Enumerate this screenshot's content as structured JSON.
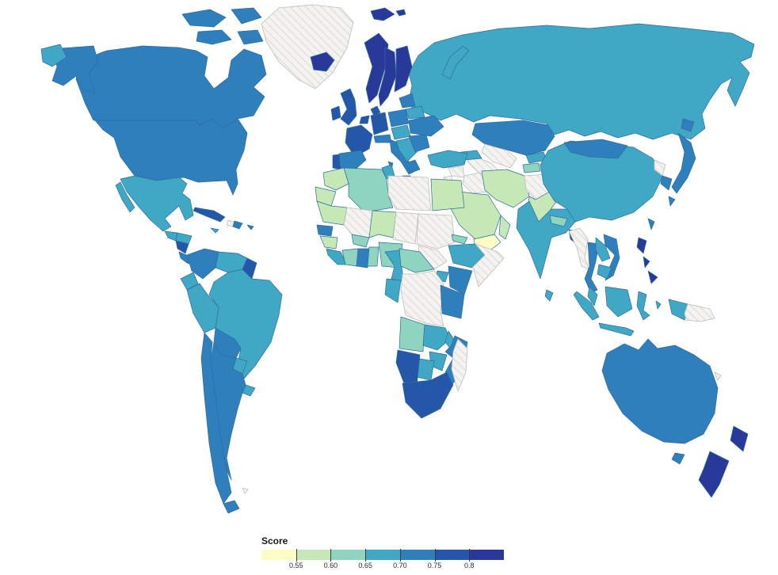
{
  "figure": {
    "kind": "choropleth-world-map",
    "background": "#ffffff",
    "no_data_style": "light gray diagonal hatching"
  },
  "legend": {
    "title": "Score",
    "ticks": [
      "0.55",
      "0.60",
      "0.65",
      "0.70",
      "0.75",
      "0.8"
    ],
    "segment_bands": [
      "b0",
      "b1",
      "b2",
      "b3",
      "b4",
      "b5",
      "b6"
    ]
  },
  "map": {
    "palette": {
      "b0": "#fcfdc4",
      "b1": "#c6e8b6",
      "b2": "#8ed4be",
      "b3": "#40a8c5",
      "b4": "#2e7fbb",
      "b5": "#2457a8",
      "b6": "#29399a",
      "no_data_bg": "#f4f3f0",
      "no_data_stripe": "#dedddb",
      "border": "#2e6da0"
    },
    "bands": [
      {
        "key": "b0",
        "range": "< 0.55"
      },
      {
        "key": "b1",
        "range": "0.55 - 0.60"
      },
      {
        "key": "b2",
        "range": "0.60 - 0.65"
      },
      {
        "key": "b3",
        "range": "0.65 - 0.70"
      },
      {
        "key": "b4",
        "range": "0.70 - 0.75"
      },
      {
        "key": "b5",
        "range": "0.75 - 0.80"
      },
      {
        "key": "b6",
        "range": "> 0.80"
      },
      {
        "key": "nodata",
        "range": "no data (hatched)"
      }
    ],
    "regions": [
      {
        "id": "greenland",
        "name": "Greenland",
        "band": "nodata"
      },
      {
        "id": "canada",
        "name": "Canada",
        "band": "b4"
      },
      {
        "id": "united-states",
        "name": "United States",
        "band": "b4"
      },
      {
        "id": "mexico",
        "name": "Mexico",
        "band": "b3"
      },
      {
        "id": "guatemala",
        "name": "Guatemala",
        "band": "b3"
      },
      {
        "id": "honduras",
        "name": "Honduras",
        "band": "b3"
      },
      {
        "id": "nicaragua",
        "name": "Nicaragua",
        "band": "b5"
      },
      {
        "id": "costa-rica",
        "name": "Costa Rica",
        "band": "b4"
      },
      {
        "id": "panama",
        "name": "Panama",
        "band": "b4"
      },
      {
        "id": "cuba",
        "name": "Cuba",
        "band": "b5"
      },
      {
        "id": "haiti",
        "name": "Haiti",
        "band": "nodata"
      },
      {
        "id": "dominican-republic",
        "name": "Dominican Republic",
        "band": "b4"
      },
      {
        "id": "jamaica",
        "name": "Jamaica",
        "band": "b3"
      },
      {
        "id": "puerto-rico",
        "name": "Puerto Rico",
        "band": "b4"
      },
      {
        "id": "colombia",
        "name": "Colombia",
        "band": "b4"
      },
      {
        "id": "venezuela",
        "name": "Venezuela",
        "band": "b3"
      },
      {
        "id": "guyana-suriname",
        "name": "Guyana / Suriname",
        "band": "b5"
      },
      {
        "id": "ecuador",
        "name": "Ecuador",
        "band": "b3"
      },
      {
        "id": "peru",
        "name": "Peru",
        "band": "b3"
      },
      {
        "id": "brazil",
        "name": "Brazil",
        "band": "b3"
      },
      {
        "id": "bolivia",
        "name": "Bolivia",
        "band": "b4"
      },
      {
        "id": "paraguay",
        "name": "Paraguay",
        "band": "b3"
      },
      {
        "id": "uruguay",
        "name": "Uruguay",
        "band": "b3"
      },
      {
        "id": "chile",
        "name": "Chile",
        "band": "b4"
      },
      {
        "id": "argentina",
        "name": "Argentina",
        "band": "b4"
      },
      {
        "id": "falkland-islands",
        "name": "Falkland Islands",
        "band": "nodata"
      },
      {
        "id": "russia",
        "name": "Russia",
        "band": "b3"
      },
      {
        "id": "iceland",
        "name": "Iceland",
        "band": "b6"
      },
      {
        "id": "svalbard",
        "name": "Svalbard",
        "band": "b6"
      },
      {
        "id": "norway",
        "name": "Norway",
        "band": "b6"
      },
      {
        "id": "sweden",
        "name": "Sweden",
        "band": "b6"
      },
      {
        "id": "finland",
        "name": "Finland",
        "band": "b6"
      },
      {
        "id": "denmark",
        "name": "Denmark",
        "band": "b5"
      },
      {
        "id": "united-kingdom",
        "name": "United Kingdom",
        "band": "b5"
      },
      {
        "id": "ireland",
        "name": "Ireland",
        "band": "b5"
      },
      {
        "id": "benelux",
        "name": "Belgium / Netherlands",
        "band": "b5"
      },
      {
        "id": "germany",
        "name": "Germany",
        "band": "b5"
      },
      {
        "id": "france",
        "name": "France",
        "band": "b5"
      },
      {
        "id": "spain",
        "name": "Spain",
        "band": "b4"
      },
      {
        "id": "portugal",
        "name": "Portugal",
        "band": "b5"
      },
      {
        "id": "italy",
        "name": "Italy",
        "band": "b4"
      },
      {
        "id": "switzerland-austria",
        "name": "Switzerland / Austria",
        "band": "b4"
      },
      {
        "id": "poland",
        "name": "Poland",
        "band": "b4"
      },
      {
        "id": "czech-slovakia-hungary",
        "name": "Czechia / Slovakia / Hungary",
        "band": "b3"
      },
      {
        "id": "balkans",
        "name": "Western Balkans",
        "band": "b3"
      },
      {
        "id": "greece",
        "name": "Greece",
        "band": "b4"
      },
      {
        "id": "romania-bulgaria",
        "name": "Romania / Bulgaria",
        "band": "b4"
      },
      {
        "id": "ukraine",
        "name": "Ukraine",
        "band": "b4"
      },
      {
        "id": "belarus",
        "name": "Belarus",
        "band": "b3"
      },
      {
        "id": "baltic-states",
        "name": "Baltic States",
        "band": "b4"
      },
      {
        "id": "kazakhstan",
        "name": "Kazakhstan",
        "band": "b4"
      },
      {
        "id": "uzbekistan",
        "name": "Uzbekistan",
        "band": "nodata"
      },
      {
        "id": "turkmenistan",
        "name": "Turkmenistan",
        "band": "nodata"
      },
      {
        "id": "kyrgyzstan",
        "name": "Kyrgyzstan",
        "band": "b3"
      },
      {
        "id": "tajikistan",
        "name": "Tajikistan",
        "band": "b2"
      },
      {
        "id": "caucasus",
        "name": "Georgia / Azerbaijan",
        "band": "b3"
      },
      {
        "id": "turkey",
        "name": "Turkey",
        "band": "b3"
      },
      {
        "id": "syria",
        "name": "Syria",
        "band": "nodata"
      },
      {
        "id": "iraq",
        "name": "Iraq",
        "band": "nodata"
      },
      {
        "id": "jordan",
        "name": "Jordan",
        "band": "nodata"
      },
      {
        "id": "iran",
        "name": "Iran",
        "band": "b1"
      },
      {
        "id": "afghanistan",
        "name": "Afghanistan",
        "band": "nodata"
      },
      {
        "id": "pakistan",
        "name": "Pakistan",
        "band": "b1"
      },
      {
        "id": "saudi-arabia",
        "name": "Saudi Arabia",
        "band": "b1"
      },
      {
        "id": "yemen",
        "name": "Yemen",
        "band": "b0"
      },
      {
        "id": "oman",
        "name": "Oman",
        "band": "b1"
      },
      {
        "id": "morocco",
        "name": "Morocco",
        "band": "b1"
      },
      {
        "id": "western-sahara",
        "name": "Western Sahara",
        "band": "b1"
      },
      {
        "id": "mauritania",
        "name": "Mauritania",
        "band": "b1"
      },
      {
        "id": "senegal",
        "name": "Senegal",
        "band": "b4"
      },
      {
        "id": "guinea",
        "name": "Guinea",
        "band": "b1"
      },
      {
        "id": "sierra-leone-liberia",
        "name": "Sierra Leone / Liberia",
        "band": "b3"
      },
      {
        "id": "mali",
        "name": "Mali",
        "band": "nodata"
      },
      {
        "id": "burkina-faso",
        "name": "Burkina Faso",
        "band": "b2"
      },
      {
        "id": "ivory-coast",
        "name": "Ivory Coast",
        "band": "b2"
      },
      {
        "id": "ghana",
        "name": "Ghana",
        "band": "b4"
      },
      {
        "id": "togo-benin",
        "name": "Togo / Benin",
        "band": "b2"
      },
      {
        "id": "niger",
        "name": "Niger",
        "band": "b1"
      },
      {
        "id": "nigeria",
        "name": "Nigeria",
        "band": "b2"
      },
      {
        "id": "chad",
        "name": "Chad",
        "band": "nodata"
      },
      {
        "id": "sudan",
        "name": "Sudan",
        "band": "nodata"
      },
      {
        "id": "south-sudan",
        "name": "South Sudan",
        "band": "nodata"
      },
      {
        "id": "libya",
        "name": "Libya",
        "band": "nodata"
      },
      {
        "id": "tunisia",
        "name": "Tunisia",
        "band": "b3"
      },
      {
        "id": "algeria",
        "name": "Algeria",
        "band": "b2"
      },
      {
        "id": "egypt",
        "name": "Egypt",
        "band": "b1"
      },
      {
        "id": "eritrea",
        "name": "Eritrea",
        "band": "b2"
      },
      {
        "id": "ethiopia",
        "name": "Ethiopia",
        "band": "b3"
      },
      {
        "id": "somalia",
        "name": "Somalia",
        "band": "nodata"
      },
      {
        "id": "central-african-republic",
        "name": "Central African Republic",
        "band": "b2"
      },
      {
        "id": "cameroon",
        "name": "Cameroon",
        "band": "b3"
      },
      {
        "id": "uganda",
        "name": "Uganda",
        "band": "b3"
      },
      {
        "id": "kenya",
        "name": "Kenya",
        "band": "b4"
      },
      {
        "id": "dr-congo",
        "name": "DR Congo",
        "band": "nodata"
      },
      {
        "id": "congo-gabon",
        "name": "Congo / Gabon",
        "band": "b3"
      },
      {
        "id": "tanzania",
        "name": "Tanzania",
        "band": "b4"
      },
      {
        "id": "angola",
        "name": "Angola",
        "band": "b2"
      },
      {
        "id": "zambia",
        "name": "Zambia",
        "band": "b3"
      },
      {
        "id": "malawi",
        "name": "Malawi",
        "band": "b3"
      },
      {
        "id": "mozambique",
        "name": "Mozambique",
        "band": "b4"
      },
      {
        "id": "zimbabwe",
        "name": "Zimbabwe",
        "band": "b3"
      },
      {
        "id": "botswana",
        "name": "Botswana",
        "band": "b3"
      },
      {
        "id": "namibia",
        "name": "Namibia",
        "band": "b5"
      },
      {
        "id": "south-africa",
        "name": "South Africa",
        "band": "b5"
      },
      {
        "id": "madagascar",
        "name": "Madagascar",
        "band": "nodata"
      },
      {
        "id": "india",
        "name": "India",
        "band": "b3"
      },
      {
        "id": "nepal",
        "name": "Nepal",
        "band": "b2"
      },
      {
        "id": "bangladesh",
        "name": "Bangladesh",
        "band": "b5"
      },
      {
        "id": "sri-lanka",
        "name": "Sri Lanka",
        "band": "b3"
      },
      {
        "id": "china",
        "name": "China",
        "band": "b3"
      },
      {
        "id": "mongolia",
        "name": "Mongolia",
        "band": "b4"
      },
      {
        "id": "north-korea",
        "name": "North Korea",
        "band": "nodata"
      },
      {
        "id": "south-korea",
        "name": "South Korea",
        "band": "b4"
      },
      {
        "id": "japan",
        "name": "Japan",
        "band": "b4"
      },
      {
        "id": "taiwan",
        "name": "Taiwan",
        "band": "b4"
      },
      {
        "id": "myanmar",
        "name": "Myanmar",
        "band": "nodata"
      },
      {
        "id": "thailand",
        "name": "Thailand",
        "band": "b4"
      },
      {
        "id": "laos",
        "name": "Laos",
        "band": "b3"
      },
      {
        "id": "vietnam",
        "name": "Vietnam",
        "band": "b4"
      },
      {
        "id": "cambodia",
        "name": "Cambodia",
        "band": "b3"
      },
      {
        "id": "malaysia",
        "name": "Malaysia",
        "band": "b3"
      },
      {
        "id": "philippines",
        "name": "Philippines",
        "band": "b6"
      },
      {
        "id": "indonesia",
        "name": "Indonesia",
        "band": "b3"
      },
      {
        "id": "papua-new-guinea",
        "name": "Papua New Guinea",
        "band": "nodata"
      },
      {
        "id": "australia",
        "name": "Australia",
        "band": "b4"
      },
      {
        "id": "new-zealand",
        "name": "New Zealand",
        "band": "b6"
      },
      {
        "id": "new-caledonia",
        "name": "New Caledonia",
        "band": "nodata"
      }
    ]
  }
}
